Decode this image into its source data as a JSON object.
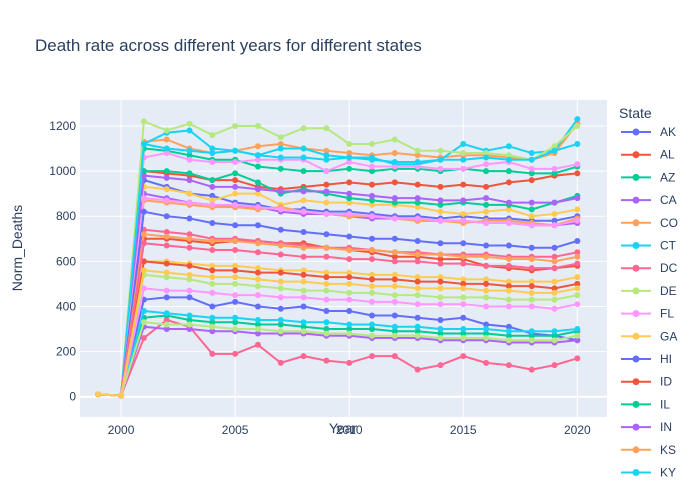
{
  "chart_data": {
    "type": "line",
    "title": "Death rate across different years for different states",
    "xlabel": "Year",
    "ylabel": "Norm_Deaths",
    "xlim": [
      1998.2,
      2021.3
    ],
    "ylim": [
      -90,
      1315
    ],
    "x_ticks": [
      2000,
      2005,
      2010,
      2015,
      2020
    ],
    "y_ticks": [
      0,
      200,
      400,
      600,
      800,
      1000,
      1200
    ],
    "grid": true,
    "legend_position": "right",
    "legend_title": "State",
    "x": [
      1999,
      2000,
      2001,
      2002,
      2003,
      2004,
      2005,
      2006,
      2007,
      2008,
      2009,
      2010,
      2011,
      2012,
      2013,
      2014,
      2015,
      2016,
      2017,
      2018,
      2019,
      2020
    ],
    "series": [
      {
        "name": "AK",
        "color": "#636efa",
        "values": [
          10,
          5,
          960,
          930,
          900,
          890,
          860,
          850,
          830,
          830,
          820,
          820,
          810,
          800,
          800,
          790,
          800,
          790,
          790,
          780,
          780,
          800
        ]
      },
      {
        "name": "AL",
        "color": "#EF553B",
        "values": [
          10,
          5,
          1000,
          990,
          980,
          960,
          960,
          930,
          920,
          930,
          940,
          950,
          940,
          950,
          940,
          930,
          940,
          930,
          950,
          960,
          980,
          990
        ]
      },
      {
        "name": "AZ",
        "color": "#00cc96",
        "values": [
          10,
          5,
          1100,
          1090,
          1070,
          1050,
          1050,
          1020,
          1010,
          1000,
          1000,
          1010,
          1000,
          1010,
          1010,
          1000,
          1010,
          1000,
          1000,
          990,
          990,
          1020
        ]
      },
      {
        "name": "CA",
        "color": "#ab63fa",
        "values": [
          10,
          5,
          900,
          880,
          860,
          850,
          840,
          840,
          820,
          810,
          810,
          800,
          790,
          790,
          780,
          780,
          780,
          770,
          770,
          760,
          760,
          770
        ]
      },
      {
        "name": "CO",
        "color": "#FFA15A",
        "values": [
          10,
          5,
          1130,
          1140,
          1100,
          1080,
          1090,
          1110,
          1120,
          1100,
          1090,
          1080,
          1070,
          1080,
          1070,
          1060,
          1070,
          1070,
          1060,
          1050,
          1080,
          1210
        ]
      },
      {
        "name": "CT",
        "color": "#19d3f3",
        "values": [
          10,
          5,
          1120,
          1170,
          1180,
          1100,
          1090,
          1070,
          1100,
          1100,
          1070,
          1060,
          1060,
          1030,
          1030,
          1050,
          1120,
          1090,
          1110,
          1080,
          1090,
          1230
        ]
      },
      {
        "name": "DC",
        "color": "#FF6692",
        "values": [
          10,
          5,
          260,
          340,
          310,
          190,
          190,
          230,
          150,
          180,
          160,
          150,
          180,
          180,
          120,
          140,
          180,
          150,
          140,
          120,
          140,
          170
        ]
      },
      {
        "name": "DE",
        "color": "#B6E880",
        "values": [
          10,
          5,
          1220,
          1180,
          1210,
          1160,
          1200,
          1200,
          1150,
          1190,
          1190,
          1120,
          1120,
          1140,
          1090,
          1090,
          1080,
          1080,
          1070,
          1050,
          1110,
          1200
        ]
      },
      {
        "name": "FL",
        "color": "#FF97FF",
        "values": [
          10,
          5,
          1060,
          1080,
          1050,
          1040,
          1040,
          1050,
          1050,
          1050,
          1000,
          1040,
          1020,
          1020,
          1020,
          1010,
          1010,
          1030,
          1040,
          1010,
          1010,
          1030
        ]
      },
      {
        "name": "GA",
        "color": "#FECB52",
        "values": [
          10,
          5,
          930,
          920,
          900,
          870,
          900,
          900,
          850,
          870,
          860,
          860,
          850,
          850,
          840,
          820,
          810,
          820,
          830,
          800,
          810,
          830
        ]
      },
      {
        "name": "HI",
        "color": "#636efa",
        "values": [
          10,
          5,
          430,
          440,
          440,
          400,
          420,
          400,
          390,
          400,
          380,
          380,
          360,
          360,
          350,
          340,
          350,
          320,
          310,
          280,
          270,
          250
        ]
      },
      {
        "name": "ID",
        "color": "#EF553B",
        "values": [
          10,
          5,
          700,
          700,
          690,
          680,
          690,
          690,
          680,
          680,
          660,
          650,
          640,
          620,
          620,
          610,
          610,
          580,
          570,
          560,
          570,
          580
        ]
      },
      {
        "name": "IL",
        "color": "#00cc96",
        "values": [
          10,
          5,
          1000,
          1000,
          990,
          960,
          990,
          950,
          900,
          920,
          900,
          880,
          870,
          860,
          860,
          850,
          860,
          850,
          850,
          830,
          860,
          890
        ]
      },
      {
        "name": "IN",
        "color": "#ab63fa",
        "values": [
          10,
          5,
          980,
          970,
          960,
          930,
          930,
          920,
          910,
          910,
          910,
          900,
          890,
          880,
          880,
          870,
          870,
          880,
          860,
          860,
          860,
          880
        ]
      },
      {
        "name": "KS",
        "color": "#FFA15A",
        "values": [
          10,
          5,
          870,
          860,
          850,
          840,
          840,
          830,
          840,
          820,
          810,
          800,
          800,
          790,
          780,
          780,
          770,
          780,
          780,
          770,
          760,
          790
        ]
      },
      {
        "name": "KY",
        "color": "#19d3f3",
        "values": [
          10,
          5,
          1120,
          1100,
          1090,
          1080,
          1090,
          1070,
          1060,
          1060,
          1050,
          1060,
          1050,
          1040,
          1040,
          1050,
          1050,
          1060,
          1050,
          1050,
          1090,
          1120
        ]
      },
      {
        "name": "",
        "color": "#FF6692",
        "values": [
          10,
          5,
          740,
          730,
          720,
          700,
          700,
          690,
          680,
          670,
          660,
          660,
          650,
          640,
          640,
          630,
          630,
          630,
          620,
          620,
          620,
          640
        ]
      },
      {
        "name": "",
        "color": "#B6E880",
        "values": [
          10,
          5,
          540,
          530,
          520,
          500,
          500,
          490,
          480,
          470,
          470,
          460,
          460,
          450,
          450,
          440,
          440,
          440,
          430,
          430,
          430,
          450
        ]
      },
      {
        "name": "",
        "color": "#FF97FF",
        "values": [
          10,
          5,
          880,
          870,
          860,
          850,
          850,
          840,
          830,
          820,
          810,
          810,
          800,
          790,
          790,
          780,
          780,
          770,
          770,
          760,
          760,
          780
        ]
      },
      {
        "name": "",
        "color": "#FECB52",
        "values": [
          10,
          5,
          600,
          600,
          590,
          580,
          580,
          570,
          560,
          560,
          550,
          550,
          540,
          540,
          530,
          530,
          520,
          520,
          510,
          510,
          510,
          530
        ]
      },
      {
        "name": "",
        "color": "#636efa",
        "values": [
          10,
          5,
          820,
          800,
          790,
          770,
          760,
          760,
          740,
          730,
          720,
          710,
          700,
          700,
          690,
          680,
          680,
          670,
          670,
          660,
          660,
          690
        ]
      },
      {
        "name": "",
        "color": "#EF553B",
        "values": [
          10,
          5,
          600,
          590,
          580,
          560,
          560,
          550,
          550,
          540,
          530,
          530,
          520,
          520,
          510,
          510,
          500,
          500,
          490,
          490,
          480,
          500
        ]
      },
      {
        "name": "",
        "color": "#00cc96",
        "values": [
          10,
          5,
          350,
          360,
          340,
          330,
          330,
          320,
          320,
          310,
          300,
          300,
          300,
          290,
          290,
          280,
          280,
          280,
          270,
          270,
          270,
          290
        ]
      },
      {
        "name": "",
        "color": "#ab63fa",
        "values": [
          10,
          5,
          310,
          300,
          300,
          290,
          290,
          280,
          280,
          280,
          270,
          270,
          260,
          260,
          260,
          250,
          250,
          250,
          240,
          240,
          240,
          250
        ]
      },
      {
        "name": "",
        "color": "#FFA15A",
        "values": [
          10,
          5,
          720,
          710,
          700,
          690,
          690,
          680,
          670,
          660,
          660,
          650,
          650,
          640,
          630,
          630,
          620,
          620,
          610,
          610,
          600,
          620
        ]
      },
      {
        "name": "",
        "color": "#19d3f3",
        "values": [
          10,
          5,
          380,
          370,
          360,
          350,
          350,
          340,
          340,
          330,
          330,
          320,
          320,
          310,
          310,
          300,
          300,
          300,
          290,
          290,
          290,
          300
        ]
      },
      {
        "name": "",
        "color": "#FF6692",
        "values": [
          10,
          5,
          680,
          670,
          660,
          650,
          650,
          640,
          630,
          620,
          620,
          610,
          610,
          600,
          600,
          590,
          590,
          580,
          580,
          570,
          570,
          590
        ]
      },
      {
        "name": "",
        "color": "#B6E880",
        "values": [
          10,
          5,
          330,
          320,
          320,
          310,
          300,
          300,
          290,
          290,
          280,
          280,
          270,
          270,
          270,
          260,
          260,
          260,
          250,
          250,
          250,
          270
        ]
      },
      {
        "name": "",
        "color": "#FF97FF",
        "values": [
          10,
          5,
          480,
          470,
          470,
          460,
          450,
          450,
          440,
          440,
          430,
          430,
          420,
          420,
          410,
          410,
          410,
          400,
          400,
          400,
          390,
          410
        ]
      },
      {
        "name": "",
        "color": "#FECB52",
        "values": [
          10,
          5,
          560,
          550,
          540,
          530,
          530,
          520,
          510,
          510,
          500,
          500,
          490,
          490,
          480,
          480,
          480,
          470,
          470,
          460,
          460,
          480
        ]
      }
    ]
  }
}
